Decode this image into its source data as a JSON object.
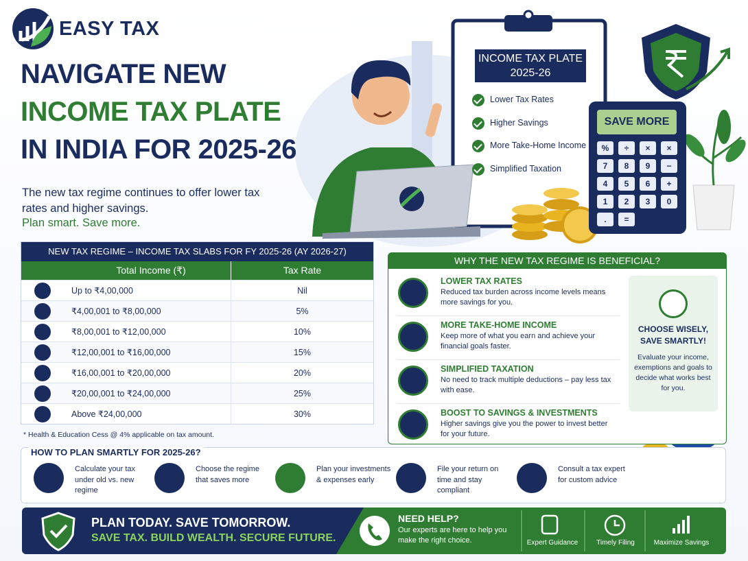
{
  "brand": "EASY TAX",
  "hero": {
    "title_lines": [
      "NAVIGATE NEW",
      "INCOME TAX PLATE",
      "IN INDIA FOR 2025-26"
    ],
    "description": "The new tax regime continues to offer lower tax rates and higher savings.",
    "tagline": "Plan smart. Save more."
  },
  "clipboard": {
    "title": "INCOME TAX PLATE 2025-26",
    "items": [
      "Lower Tax Rates",
      "Higher Savings",
      "More Take-Home Income",
      "Simplified Taxation"
    ]
  },
  "calculator": {
    "display": "SAVE MORE",
    "keys": [
      "%",
      "÷",
      "×",
      "×",
      "7",
      "8",
      "9",
      "−",
      "4",
      "5",
      "6",
      "+",
      "1",
      "2",
      "3",
      "0",
      ".",
      "="
    ]
  },
  "table": {
    "title": "NEW TAX REGIME – INCOME TAX SLABS FOR FY 2025-26 (AY 2026-27)",
    "headers": [
      "Total Income (₹)",
      "Tax Rate"
    ],
    "rows": [
      [
        "Up to ₹4,00,000",
        "Nil"
      ],
      [
        "₹4,00,001 to ₹8,00,000",
        "5%"
      ],
      [
        "₹8,00,001 to ₹12,00,000",
        "10%"
      ],
      [
        "₹12,00,001 to ₹16,00,000",
        "15%"
      ],
      [
        "₹16,00,001 to ₹20,00,000",
        "20%"
      ],
      [
        "₹20,00,001 to ₹24,00,000",
        "25%"
      ],
      [
        "Above ₹24,00,000",
        "30%"
      ]
    ],
    "footnote": "* Health & Education Cess @ 4% applicable on tax amount."
  },
  "benefits": {
    "title": "WHY THE NEW TAX REGIME IS BENEFICIAL?",
    "items": [
      {
        "title": "LOWER TAX RATES",
        "text": "Reduced tax burden across income levels means more savings for you."
      },
      {
        "title": "MORE TAKE-HOME INCOME",
        "text": "Keep more of what you earn and achieve your financial goals faster."
      },
      {
        "title": "SIMPLIFIED TAXATION",
        "text": "No need to track multiple deductions – pay less tax with ease."
      },
      {
        "title": "BOOST TO SAVINGS & INVESTMENTS",
        "text": "Higher savings give you the power to invest better for your future."
      }
    ],
    "side": {
      "title": "CHOOSE WISELY, SAVE SMARTLY!",
      "text": "Evaluate your income, exemptions and goals to decide what works best for you."
    }
  },
  "plan": {
    "title": "HOW TO PLAN SMARTLY FOR 2025-26?",
    "steps": [
      "Calculate your tax under old vs. new regime",
      "Choose the regime that saves more",
      "Plan your investments & expenses early",
      "File your return on time and stay compliant",
      "Consult a tax expert for custom advice"
    ]
  },
  "footer": {
    "headline": "PLAN TODAY. SAVE TOMORROW.",
    "subline": "SAVE TAX. BUILD WEALTH. SECURE FUTURE.",
    "help_title": "NEED HELP?",
    "help_text": "Our experts are here to help you make the right choice.",
    "features": [
      "Expert Guidance",
      "Timely Filing",
      "Maximize Savings"
    ]
  }
}
